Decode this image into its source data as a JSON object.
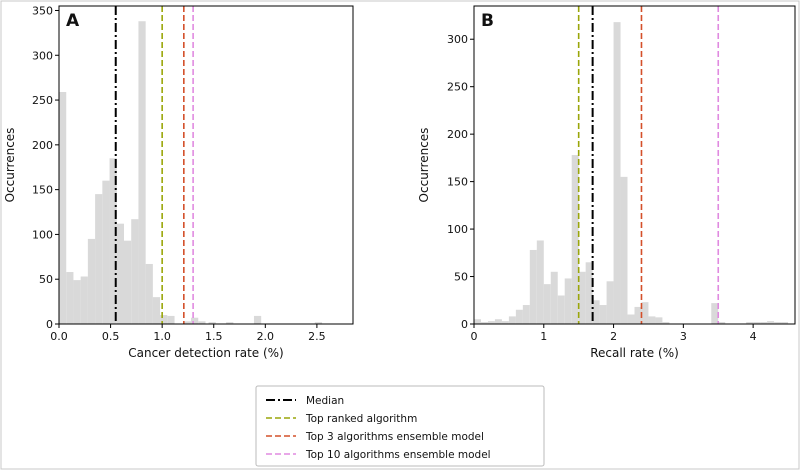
{
  "chart_data": [
    {
      "type": "histogram",
      "panel_label": "A",
      "xlabel": "Cancer detection rate (%)",
      "ylabel": "Occurrences",
      "xlim": [
        0,
        2.85
      ],
      "ylim": [
        0,
        355
      ],
      "xticks": [
        0.0,
        0.5,
        1.0,
        1.5,
        2.0,
        2.5
      ],
      "xtick_labels": [
        "0.0",
        "0.5",
        "1.0",
        "1.5",
        "2.0",
        "2.5"
      ],
      "yticks": [
        0,
        50,
        100,
        150,
        200,
        250,
        300,
        350
      ],
      "ytick_labels": [
        "0",
        "50",
        "100",
        "150",
        "200",
        "250",
        "300",
        "350"
      ],
      "bars": [
        {
          "x0": 0.0,
          "x1": 0.07,
          "value": 259
        },
        {
          "x0": 0.07,
          "x1": 0.14,
          "value": 58
        },
        {
          "x0": 0.14,
          "x1": 0.21,
          "value": 49
        },
        {
          "x0": 0.21,
          "x1": 0.28,
          "value": 53
        },
        {
          "x0": 0.28,
          "x1": 0.35,
          "value": 95
        },
        {
          "x0": 0.35,
          "x1": 0.42,
          "value": 145
        },
        {
          "x0": 0.42,
          "x1": 0.49,
          "value": 160
        },
        {
          "x0": 0.49,
          "x1": 0.56,
          "value": 185
        },
        {
          "x0": 0.56,
          "x1": 0.63,
          "value": 112
        },
        {
          "x0": 0.63,
          "x1": 0.7,
          "value": 93
        },
        {
          "x0": 0.7,
          "x1": 0.77,
          "value": 117
        },
        {
          "x0": 0.77,
          "x1": 0.84,
          "value": 338
        },
        {
          "x0": 0.84,
          "x1": 0.91,
          "value": 67
        },
        {
          "x0": 0.91,
          "x1": 0.98,
          "value": 30
        },
        {
          "x0": 0.98,
          "x1": 1.05,
          "value": 10
        },
        {
          "x0": 1.05,
          "x1": 1.12,
          "value": 9
        },
        {
          "x0": 1.21,
          "x1": 1.28,
          "value": 3
        },
        {
          "x0": 1.28,
          "x1": 1.35,
          "value": 7
        },
        {
          "x0": 1.35,
          "x1": 1.42,
          "value": 3
        },
        {
          "x0": 1.45,
          "x1": 1.52,
          "value": 2
        },
        {
          "x0": 1.62,
          "x1": 1.69,
          "value": 2
        },
        {
          "x0": 1.89,
          "x1": 1.96,
          "value": 9
        },
        {
          "x0": 2.48,
          "x1": 2.55,
          "value": 2
        }
      ],
      "vlines": [
        {
          "x": 0.55,
          "legend": 0
        },
        {
          "x": 1.0,
          "legend": 1
        },
        {
          "x": 1.21,
          "legend": 2
        },
        {
          "x": 1.3,
          "legend": 3
        }
      ]
    },
    {
      "type": "histogram",
      "panel_label": "B",
      "xlabel": "Recall rate (%)",
      "ylabel": "Occurrences",
      "xlim": [
        0,
        4.6
      ],
      "ylim": [
        0,
        335
      ],
      "xticks": [
        0,
        1,
        2,
        3,
        4
      ],
      "xtick_labels": [
        "0",
        "1",
        "2",
        "3",
        "4"
      ],
      "yticks": [
        0,
        50,
        100,
        150,
        200,
        250,
        300
      ],
      "ytick_labels": [
        "0",
        "50",
        "100",
        "150",
        "200",
        "250",
        "300"
      ],
      "bars": [
        {
          "x0": 0.0,
          "x1": 0.1,
          "value": 5
        },
        {
          "x0": 0.1,
          "x1": 0.2,
          "value": 2
        },
        {
          "x0": 0.2,
          "x1": 0.3,
          "value": 3
        },
        {
          "x0": 0.3,
          "x1": 0.4,
          "value": 5
        },
        {
          "x0": 0.4,
          "x1": 0.5,
          "value": 3
        },
        {
          "x0": 0.5,
          "x1": 0.6,
          "value": 8
        },
        {
          "x0": 0.6,
          "x1": 0.7,
          "value": 15
        },
        {
          "x0": 0.7,
          "x1": 0.8,
          "value": 20
        },
        {
          "x0": 0.8,
          "x1": 0.9,
          "value": 78
        },
        {
          "x0": 0.9,
          "x1": 1.0,
          "value": 88
        },
        {
          "x0": 1.0,
          "x1": 1.1,
          "value": 42
        },
        {
          "x0": 1.1,
          "x1": 1.2,
          "value": 55
        },
        {
          "x0": 1.2,
          "x1": 1.3,
          "value": 30
        },
        {
          "x0": 1.3,
          "x1": 1.4,
          "value": 48
        },
        {
          "x0": 1.4,
          "x1": 1.5,
          "value": 178
        },
        {
          "x0": 1.5,
          "x1": 1.6,
          "value": 55
        },
        {
          "x0": 1.6,
          "x1": 1.7,
          "value": 65
        },
        {
          "x0": 1.7,
          "x1": 1.8,
          "value": 25
        },
        {
          "x0": 1.8,
          "x1": 1.9,
          "value": 20
        },
        {
          "x0": 1.9,
          "x1": 2.0,
          "value": 45
        },
        {
          "x0": 2.0,
          "x1": 2.1,
          "value": 318
        },
        {
          "x0": 2.1,
          "x1": 2.2,
          "value": 155
        },
        {
          "x0": 2.2,
          "x1": 2.3,
          "value": 10
        },
        {
          "x0": 2.3,
          "x1": 2.4,
          "value": 18
        },
        {
          "x0": 2.4,
          "x1": 2.5,
          "value": 23
        },
        {
          "x0": 2.5,
          "x1": 2.6,
          "value": 8
        },
        {
          "x0": 2.6,
          "x1": 2.7,
          "value": 7
        },
        {
          "x0": 2.7,
          "x1": 2.8,
          "value": 2
        },
        {
          "x0": 3.4,
          "x1": 3.5,
          "value": 22
        },
        {
          "x0": 3.5,
          "x1": 3.6,
          "value": 2
        },
        {
          "x0": 3.9,
          "x1": 4.0,
          "value": 2
        },
        {
          "x0": 4.0,
          "x1": 4.1,
          "value": 2
        },
        {
          "x0": 4.1,
          "x1": 4.2,
          "value": 2
        },
        {
          "x0": 4.2,
          "x1": 4.3,
          "value": 3
        },
        {
          "x0": 4.3,
          "x1": 4.4,
          "value": 2
        },
        {
          "x0": 4.4,
          "x1": 4.5,
          "value": 2
        }
      ],
      "vlines": [
        {
          "x": 1.5,
          "legend": 1
        },
        {
          "x": 1.7,
          "legend": 0
        },
        {
          "x": 2.4,
          "legend": 2
        },
        {
          "x": 3.5,
          "legend": 3
        }
      ]
    }
  ],
  "legend": {
    "placement": "bottom-center",
    "entries": [
      {
        "label": "Median",
        "color": "#000000",
        "dash": "dashdot"
      },
      {
        "label": "Top ranked algorithm",
        "color": "#9aa60a",
        "dash": "dashed"
      },
      {
        "label": "Top 3 algorithms ensemble model",
        "color": "#d4502a",
        "dash": "dashed"
      },
      {
        "label": "Top 10 algorithms ensemble model",
        "color": "#e08ae0",
        "dash": "dashed"
      }
    ]
  },
  "colors": {
    "bar": "#d9d9d9",
    "background": "#ffffff",
    "frame": "#c8c8c8"
  }
}
